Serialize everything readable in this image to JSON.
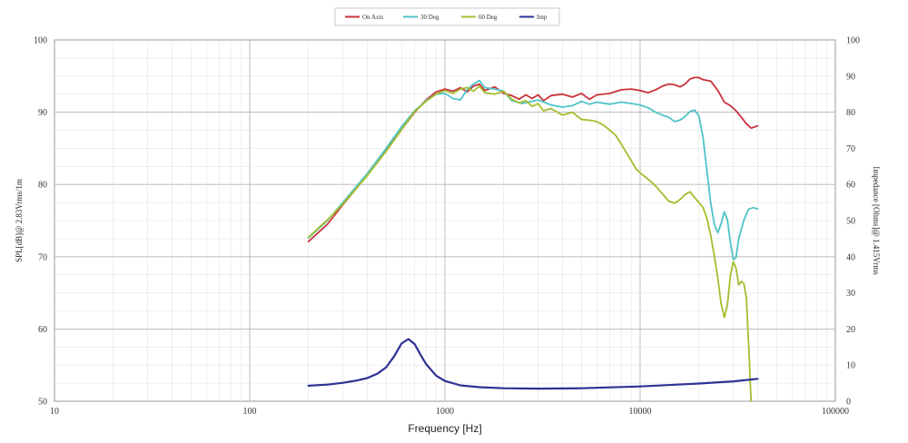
{
  "chart_data": {
    "type": "line",
    "xlabel": "Frequency [Hz]",
    "ylabel_left": "SPL[dB]@ 2.83Vrms/1m",
    "ylabel_right": "Impedance [Ohms]@ 1.415Vrms",
    "x_scale": "log",
    "xlim": [
      10,
      100000
    ],
    "x_ticks": [
      "10",
      "100",
      "1000",
      "10000",
      "100000"
    ],
    "x_tick_values": [
      10,
      100,
      1000,
      10000,
      100000
    ],
    "ylim_left": [
      50,
      100
    ],
    "y_ticks_left": [
      "50",
      "60",
      "70",
      "80",
      "90",
      "100"
    ],
    "y_tick_values_left": [
      50,
      60,
      70,
      80,
      90,
      100
    ],
    "ylim_right": [
      0,
      100
    ],
    "y_ticks_right": [
      "0",
      "10",
      "20",
      "30",
      "40",
      "50",
      "60",
      "70",
      "80",
      "90",
      "100"
    ],
    "y_tick_values_right": [
      0,
      10,
      20,
      30,
      40,
      50,
      60,
      70,
      80,
      90,
      100
    ],
    "grid": true,
    "legend_position": "top-center",
    "series": [
      {
        "name": "On Axis",
        "color": "#c8323a",
        "axis": "left",
        "points": [
          [
            200,
            72.1
          ],
          [
            250,
            74.5
          ],
          [
            300,
            77.2
          ],
          [
            400,
            81.3
          ],
          [
            500,
            84.7
          ],
          [
            600,
            87.6
          ],
          [
            700,
            90.0
          ],
          [
            800,
            91.7
          ],
          [
            900,
            92.8
          ],
          [
            1000,
            93.2
          ],
          [
            1100,
            92.9
          ],
          [
            1200,
            93.4
          ],
          [
            1300,
            92.8
          ],
          [
            1400,
            93.6
          ],
          [
            1500,
            93.9
          ],
          [
            1600,
            93.0
          ],
          [
            1800,
            93.5
          ],
          [
            2000,
            92.6
          ],
          [
            2200,
            92.3
          ],
          [
            2400,
            91.8
          ],
          [
            2600,
            92.4
          ],
          [
            2800,
            91.9
          ],
          [
            3000,
            92.4
          ],
          [
            3200,
            91.6
          ],
          [
            3500,
            92.3
          ],
          [
            4000,
            92.5
          ],
          [
            4500,
            92.1
          ],
          [
            5000,
            92.6
          ],
          [
            5500,
            91.8
          ],
          [
            6000,
            92.4
          ],
          [
            7000,
            92.6
          ],
          [
            8000,
            93.1
          ],
          [
            9000,
            93.2
          ],
          [
            10000,
            93.0
          ],
          [
            11000,
            92.7
          ],
          [
            12000,
            93.1
          ],
          [
            13000,
            93.6
          ],
          [
            14000,
            93.9
          ],
          [
            15000,
            93.8
          ],
          [
            16000,
            93.5
          ],
          [
            17000,
            93.9
          ],
          [
            18000,
            94.6
          ],
          [
            19000,
            94.8
          ],
          [
            20000,
            94.8
          ],
          [
            21000,
            94.5
          ],
          [
            23000,
            94.3
          ],
          [
            25000,
            93.0
          ],
          [
            27000,
            91.4
          ],
          [
            29000,
            90.9
          ],
          [
            31000,
            90.2
          ],
          [
            33000,
            89.3
          ],
          [
            35000,
            88.4
          ],
          [
            37000,
            87.8
          ],
          [
            40000,
            88.1
          ]
        ]
      },
      {
        "name": "30 Deg",
        "color": "#4fc3c8",
        "axis": "left",
        "points": [
          [
            200,
            72.6
          ],
          [
            250,
            75.0
          ],
          [
            300,
            77.5
          ],
          [
            400,
            81.5
          ],
          [
            500,
            85.0
          ],
          [
            600,
            88.0
          ],
          [
            700,
            90.2
          ],
          [
            800,
            91.6
          ],
          [
            900,
            92.5
          ],
          [
            1000,
            92.6
          ],
          [
            1100,
            91.9
          ],
          [
            1200,
            91.7
          ],
          [
            1300,
            93.1
          ],
          [
            1400,
            93.9
          ],
          [
            1500,
            94.4
          ],
          [
            1600,
            93.4
          ],
          [
            1800,
            93.2
          ],
          [
            2000,
            92.9
          ],
          [
            2200,
            91.6
          ],
          [
            2500,
            91.2
          ],
          [
            3000,
            91.7
          ],
          [
            3500,
            91.0
          ],
          [
            4000,
            90.7
          ],
          [
            4500,
            90.9
          ],
          [
            5000,
            91.5
          ],
          [
            5500,
            91.1
          ],
          [
            6000,
            91.4
          ],
          [
            7000,
            91.1
          ],
          [
            8000,
            91.4
          ],
          [
            9000,
            91.2
          ],
          [
            10000,
            91.0
          ],
          [
            11000,
            90.6
          ],
          [
            12000,
            90.0
          ],
          [
            13000,
            89.6
          ],
          [
            14000,
            89.3
          ],
          [
            15000,
            88.7
          ],
          [
            16000,
            88.9
          ],
          [
            17000,
            89.4
          ],
          [
            18000,
            90.1
          ],
          [
            19000,
            90.3
          ],
          [
            20000,
            89.5
          ],
          [
            21000,
            86.5
          ],
          [
            22000,
            81.8
          ],
          [
            23000,
            77.4
          ],
          [
            24000,
            74.5
          ],
          [
            25000,
            73.3
          ],
          [
            26000,
            74.6
          ],
          [
            27000,
            76.2
          ],
          [
            28000,
            75.1
          ],
          [
            29000,
            72.0
          ],
          [
            30000,
            69.6
          ],
          [
            31000,
            69.9
          ],
          [
            32000,
            72.5
          ],
          [
            34000,
            75.1
          ],
          [
            36000,
            76.6
          ],
          [
            38000,
            76.8
          ],
          [
            40000,
            76.6
          ]
        ]
      },
      {
        "name": "60 Deg",
        "color": "#a4bd2e",
        "axis": "left",
        "points": [
          [
            200,
            72.7
          ],
          [
            250,
            75.1
          ],
          [
            300,
            77.3
          ],
          [
            400,
            81.2
          ],
          [
            500,
            84.6
          ],
          [
            600,
            87.6
          ],
          [
            700,
            90.1
          ],
          [
            800,
            91.5
          ],
          [
            900,
            92.5
          ],
          [
            1000,
            93.0
          ],
          [
            1100,
            92.6
          ],
          [
            1200,
            93.2
          ],
          [
            1300,
            93.4
          ],
          [
            1400,
            92.9
          ],
          [
            1500,
            93.6
          ],
          [
            1600,
            92.7
          ],
          [
            1800,
            92.5
          ],
          [
            2000,
            92.9
          ],
          [
            2200,
            91.8
          ],
          [
            2400,
            91.3
          ],
          [
            2600,
            91.6
          ],
          [
            2800,
            90.8
          ],
          [
            3000,
            91.2
          ],
          [
            3200,
            90.2
          ],
          [
            3500,
            90.5
          ],
          [
            4000,
            89.6
          ],
          [
            4500,
            90.0
          ],
          [
            5000,
            89.0
          ],
          [
            5500,
            88.9
          ],
          [
            6000,
            88.7
          ],
          [
            6500,
            88.2
          ],
          [
            7000,
            87.5
          ],
          [
            7500,
            86.8
          ],
          [
            8000,
            85.6
          ],
          [
            8500,
            84.4
          ],
          [
            9000,
            83.3
          ],
          [
            9500,
            82.2
          ],
          [
            10000,
            81.6
          ],
          [
            11000,
            80.7
          ],
          [
            12000,
            79.8
          ],
          [
            13000,
            78.7
          ],
          [
            14000,
            77.7
          ],
          [
            15000,
            77.4
          ],
          [
            16000,
            77.9
          ],
          [
            17000,
            78.6
          ],
          [
            18000,
            79.0
          ],
          [
            19000,
            78.2
          ],
          [
            20000,
            77.5
          ],
          [
            21000,
            76.8
          ],
          [
            22000,
            75.3
          ],
          [
            23000,
            72.9
          ],
          [
            24000,
            70.1
          ],
          [
            25000,
            67.0
          ],
          [
            26000,
            63.5
          ],
          [
            27000,
            61.6
          ],
          [
            28000,
            63.3
          ],
          [
            29000,
            67.4
          ],
          [
            30000,
            69.3
          ],
          [
            31000,
            68.4
          ],
          [
            32000,
            66.1
          ],
          [
            33000,
            66.6
          ],
          [
            34000,
            66.3
          ],
          [
            35000,
            64.3
          ],
          [
            36000,
            57.6
          ],
          [
            37000,
            50.0
          ]
        ]
      },
      {
        "name": "Imp",
        "color": "#2e3192",
        "axis": "right",
        "points": [
          [
            200,
            4.3
          ],
          [
            250,
            4.6
          ],
          [
            300,
            5.1
          ],
          [
            350,
            5.7
          ],
          [
            400,
            6.4
          ],
          [
            450,
            7.6
          ],
          [
            500,
            9.4
          ],
          [
            550,
            12.5
          ],
          [
            600,
            16.0
          ],
          [
            650,
            17.2
          ],
          [
            700,
            15.8
          ],
          [
            750,
            12.9
          ],
          [
            800,
            10.3
          ],
          [
            900,
            7.1
          ],
          [
            1000,
            5.6
          ],
          [
            1200,
            4.4
          ],
          [
            1500,
            3.9
          ],
          [
            2000,
            3.6
          ],
          [
            3000,
            3.5
          ],
          [
            5000,
            3.6
          ],
          [
            10000,
            4.1
          ],
          [
            20000,
            4.9
          ],
          [
            30000,
            5.5
          ],
          [
            40000,
            6.2
          ]
        ]
      }
    ]
  }
}
